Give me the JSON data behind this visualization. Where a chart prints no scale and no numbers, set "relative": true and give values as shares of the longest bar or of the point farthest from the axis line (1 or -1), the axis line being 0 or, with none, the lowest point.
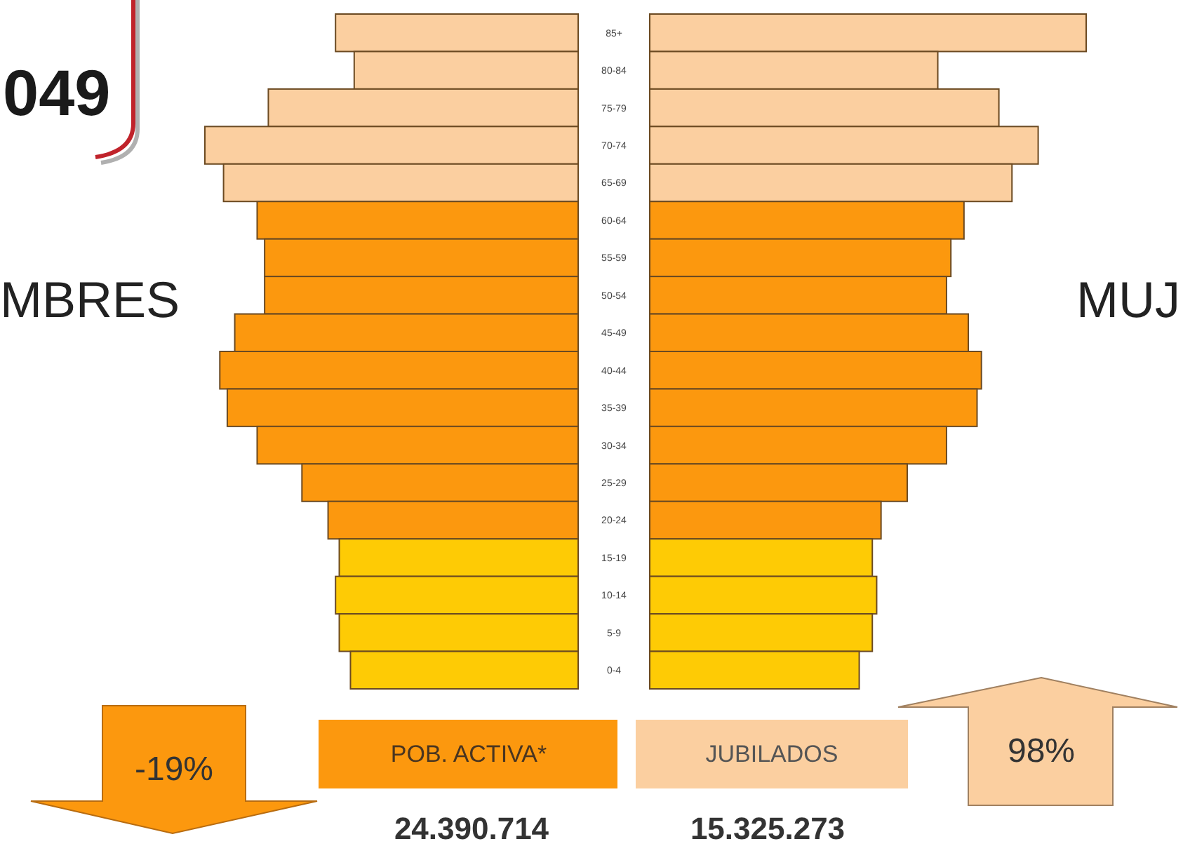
{
  "chart_data": [
    {
      "type": "bar",
      "orientation": "horizontal",
      "relative": true,
      "title": "049",
      "tick_labels": false,
      "categories": [
        "85+",
        "80-84",
        "75-79",
        "70-74",
        "65-69",
        "60-64",
        "55-59",
        "50-54",
        "45-49",
        "40-44",
        "35-39",
        "30-34",
        "25-29",
        "20-24",
        "15-19",
        "10-14",
        "5-9",
        "0-4"
      ],
      "series": [
        {
          "name": "MBRES",
          "colors": [
            "#fbcfa0",
            "#fbcfa0",
            "#fbcfa0",
            "#fbcfa0",
            "#fbcfa0",
            "#fc980e",
            "#fc980e",
            "#fc980e",
            "#fc980e",
            "#fc980e",
            "#fc980e",
            "#fc980e",
            "#fc980e",
            "#fc980e",
            "#fecb05",
            "#fecb05",
            "#fecb05",
            "#fecb05"
          ],
          "values": [
            -0.65,
            -0.6,
            -0.83,
            -1,
            -0.95,
            -0.86,
            -0.84,
            -0.84,
            -0.92,
            -0.96,
            -0.94,
            -0.86,
            -0.74,
            -0.67,
            -0.64,
            -0.65,
            -0.64,
            -0.61
          ]
        }
      ],
      "annotations": [
        "-19%",
        "POB. ACTIVA*",
        "JUBILADOS",
        "98%",
        "24.390.714",
        "15.325.273"
      ]
    },
    {
      "type": "bar",
      "orientation": "horizontal",
      "relative": true,
      "categories": [
        "85+",
        "80-84",
        "75-79",
        "70-74",
        "65-69",
        "60-64",
        "55-59",
        "50-54",
        "45-49",
        "40-44",
        "35-39",
        "30-34",
        "25-29",
        "20-24",
        "15-19",
        "10-14",
        "5-9",
        "0-4"
      ],
      "series": [
        {
          "name": "MUJ",
          "colors": [
            "#fbcfa0",
            "#fbcfa0",
            "#fbcfa0",
            "#fbcfa0",
            "#fbcfa0",
            "#fc980e",
            "#fc980e",
            "#fc980e",
            "#fc980e",
            "#fc980e",
            "#fc980e",
            "#fc980e",
            "#fc980e",
            "#fc980e",
            "#fecb05",
            "#fecb05",
            "#fecb05",
            "#fecb05"
          ],
          "values": [
            1,
            0.66,
            0.8,
            0.89,
            0.83,
            0.72,
            0.69,
            0.68,
            0.73,
            0.76,
            0.75,
            0.68,
            0.59,
            0.53,
            0.51,
            0.52,
            0.51,
            0.48
          ]
        }
      ]
    }
  ]
}
